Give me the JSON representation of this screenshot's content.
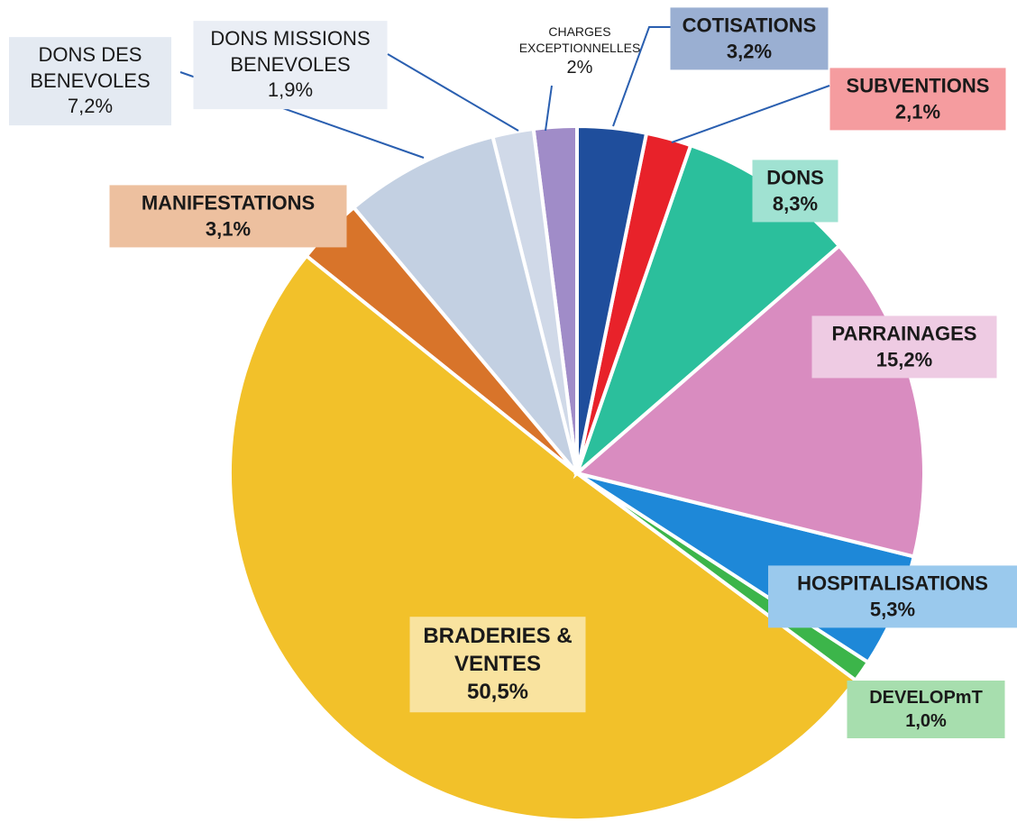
{
  "chart_data": {
    "type": "pie",
    "categories": [
      "COTISATIONS",
      "SUBVENTIONS",
      "DONS",
      "PARRAINAGES",
      "HOSPITALISATIONS",
      "DEVELOPmT",
      "BRADERIES & VENTES",
      "MANIFESTATIONS",
      "DONS DES BENEVOLES",
      "DONS MISSIONS BENEVOLES",
      "CHARGES EXCEPTIONNELLES"
    ],
    "values": [
      3.2,
      2.1,
      8.3,
      15.2,
      5.3,
      1.0,
      50.5,
      3.1,
      7.2,
      1.9,
      2
    ],
    "value_labels": [
      "3,2%",
      "2,1%",
      "8,3%",
      "15,2%",
      "5,3%",
      "1,0%",
      "50,5%",
      "3,1%",
      "7,2%",
      "1,9%",
      "2%"
    ],
    "colors": [
      "#1f4e9c",
      "#e8222a",
      "#2bbf9c",
      "#d98cc0",
      "#1e88d8",
      "#3cb54a",
      "#f2c12a",
      "#d8742a",
      "#c3d0e2",
      "#d0d9e8",
      "#a08cc8"
    ]
  }
}
